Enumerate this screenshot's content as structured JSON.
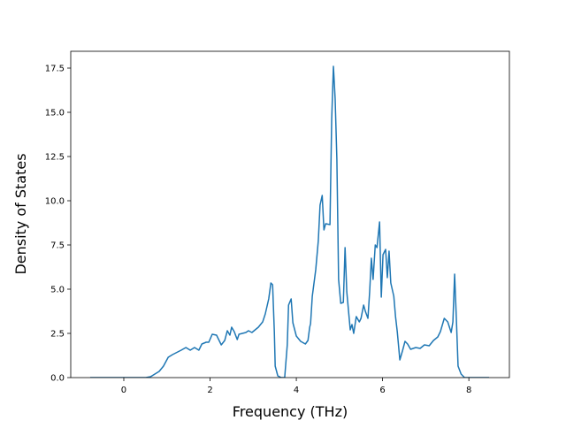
{
  "chart_data": {
    "type": "line",
    "xlabel": "Frequency (THz)",
    "ylabel": "Density of States",
    "color": "#1f77b4",
    "x": [
      -0.78,
      0.51,
      0.62,
      0.82,
      0.92,
      1.03,
      1.13,
      1.33,
      1.44,
      1.54,
      1.64,
      1.74,
      1.81,
      1.91,
      1.97,
      2.05,
      2.15,
      2.26,
      2.34,
      2.4,
      2.46,
      2.5,
      2.56,
      2.63,
      2.67,
      2.83,
      2.89,
      2.97,
      3.12,
      3.22,
      3.28,
      3.36,
      3.41,
      3.45,
      3.49,
      3.51,
      3.57,
      3.65,
      3.73,
      3.79,
      3.82,
      3.88,
      3.92,
      4.0,
      4.1,
      4.21,
      4.27,
      4.31,
      4.33,
      4.37,
      4.45,
      4.51,
      4.55,
      4.6,
      4.64,
      4.68,
      4.78,
      4.82,
      4.86,
      4.9,
      4.94,
      4.98,
      5.03,
      5.09,
      5.13,
      5.17,
      5.25,
      5.29,
      5.33,
      5.39,
      5.46,
      5.5,
      5.56,
      5.6,
      5.66,
      5.7,
      5.74,
      5.78,
      5.83,
      5.87,
      5.93,
      5.97,
      6.01,
      6.07,
      6.11,
      6.15,
      6.19,
      6.26,
      6.3,
      6.34,
      6.4,
      6.46,
      6.52,
      6.58,
      6.65,
      6.77,
      6.87,
      6.97,
      7.08,
      7.18,
      7.28,
      7.34,
      7.43,
      7.51,
      7.59,
      7.63,
      7.67,
      7.71,
      7.75,
      7.82,
      7.9,
      8.47
    ],
    "values": [
      0,
      0,
      0.05,
      0.35,
      0.65,
      1.15,
      1.3,
      1.55,
      1.7,
      1.55,
      1.7,
      1.55,
      1.9,
      2.0,
      2.0,
      2.45,
      2.4,
      1.85,
      2.1,
      2.65,
      2.4,
      2.85,
      2.6,
      2.15,
      2.45,
      2.55,
      2.65,
      2.55,
      2.85,
      3.15,
      3.6,
      4.45,
      5.35,
      5.25,
      2.6,
      0.65,
      0.1,
      0,
      0,
      1.85,
      4.1,
      4.45,
      3.1,
      2.35,
      2.05,
      1.9,
      2.1,
      2.85,
      3.05,
      4.6,
      6.1,
      7.75,
      9.75,
      10.3,
      8.35,
      8.7,
      8.65,
      14.6,
      17.6,
      15.75,
      12.35,
      5.55,
      4.2,
      4.25,
      7.35,
      4.85,
      2.7,
      3.0,
      2.5,
      3.45,
      3.15,
      3.35,
      4.1,
      3.75,
      3.35,
      4.85,
      6.75,
      5.55,
      7.5,
      7.35,
      8.8,
      4.55,
      6.95,
      7.25,
      5.65,
      7.15,
      5.35,
      4.6,
      3.45,
      2.6,
      1.0,
      1.5,
      2.05,
      1.9,
      1.6,
      1.7,
      1.65,
      1.85,
      1.8,
      2.1,
      2.3,
      2.6,
      3.35,
      3.15,
      2.55,
      3.15,
      5.85,
      3.35,
      0.65,
      0.2,
      0,
      0
    ],
    "xlim": [
      -1.23,
      8.94
    ],
    "ylim": [
      0,
      18.45
    ],
    "xticks": [
      0,
      2,
      4,
      6,
      8
    ],
    "yticks": [
      {
        "value": 0,
        "label": "0.0"
      },
      2.5,
      {
        "value": 5,
        "label": "5.0"
      },
      7.5,
      {
        "value": 10,
        "label": "10.0"
      },
      12.5,
      {
        "value": 15,
        "label": "15.0"
      },
      17.5
    ]
  }
}
